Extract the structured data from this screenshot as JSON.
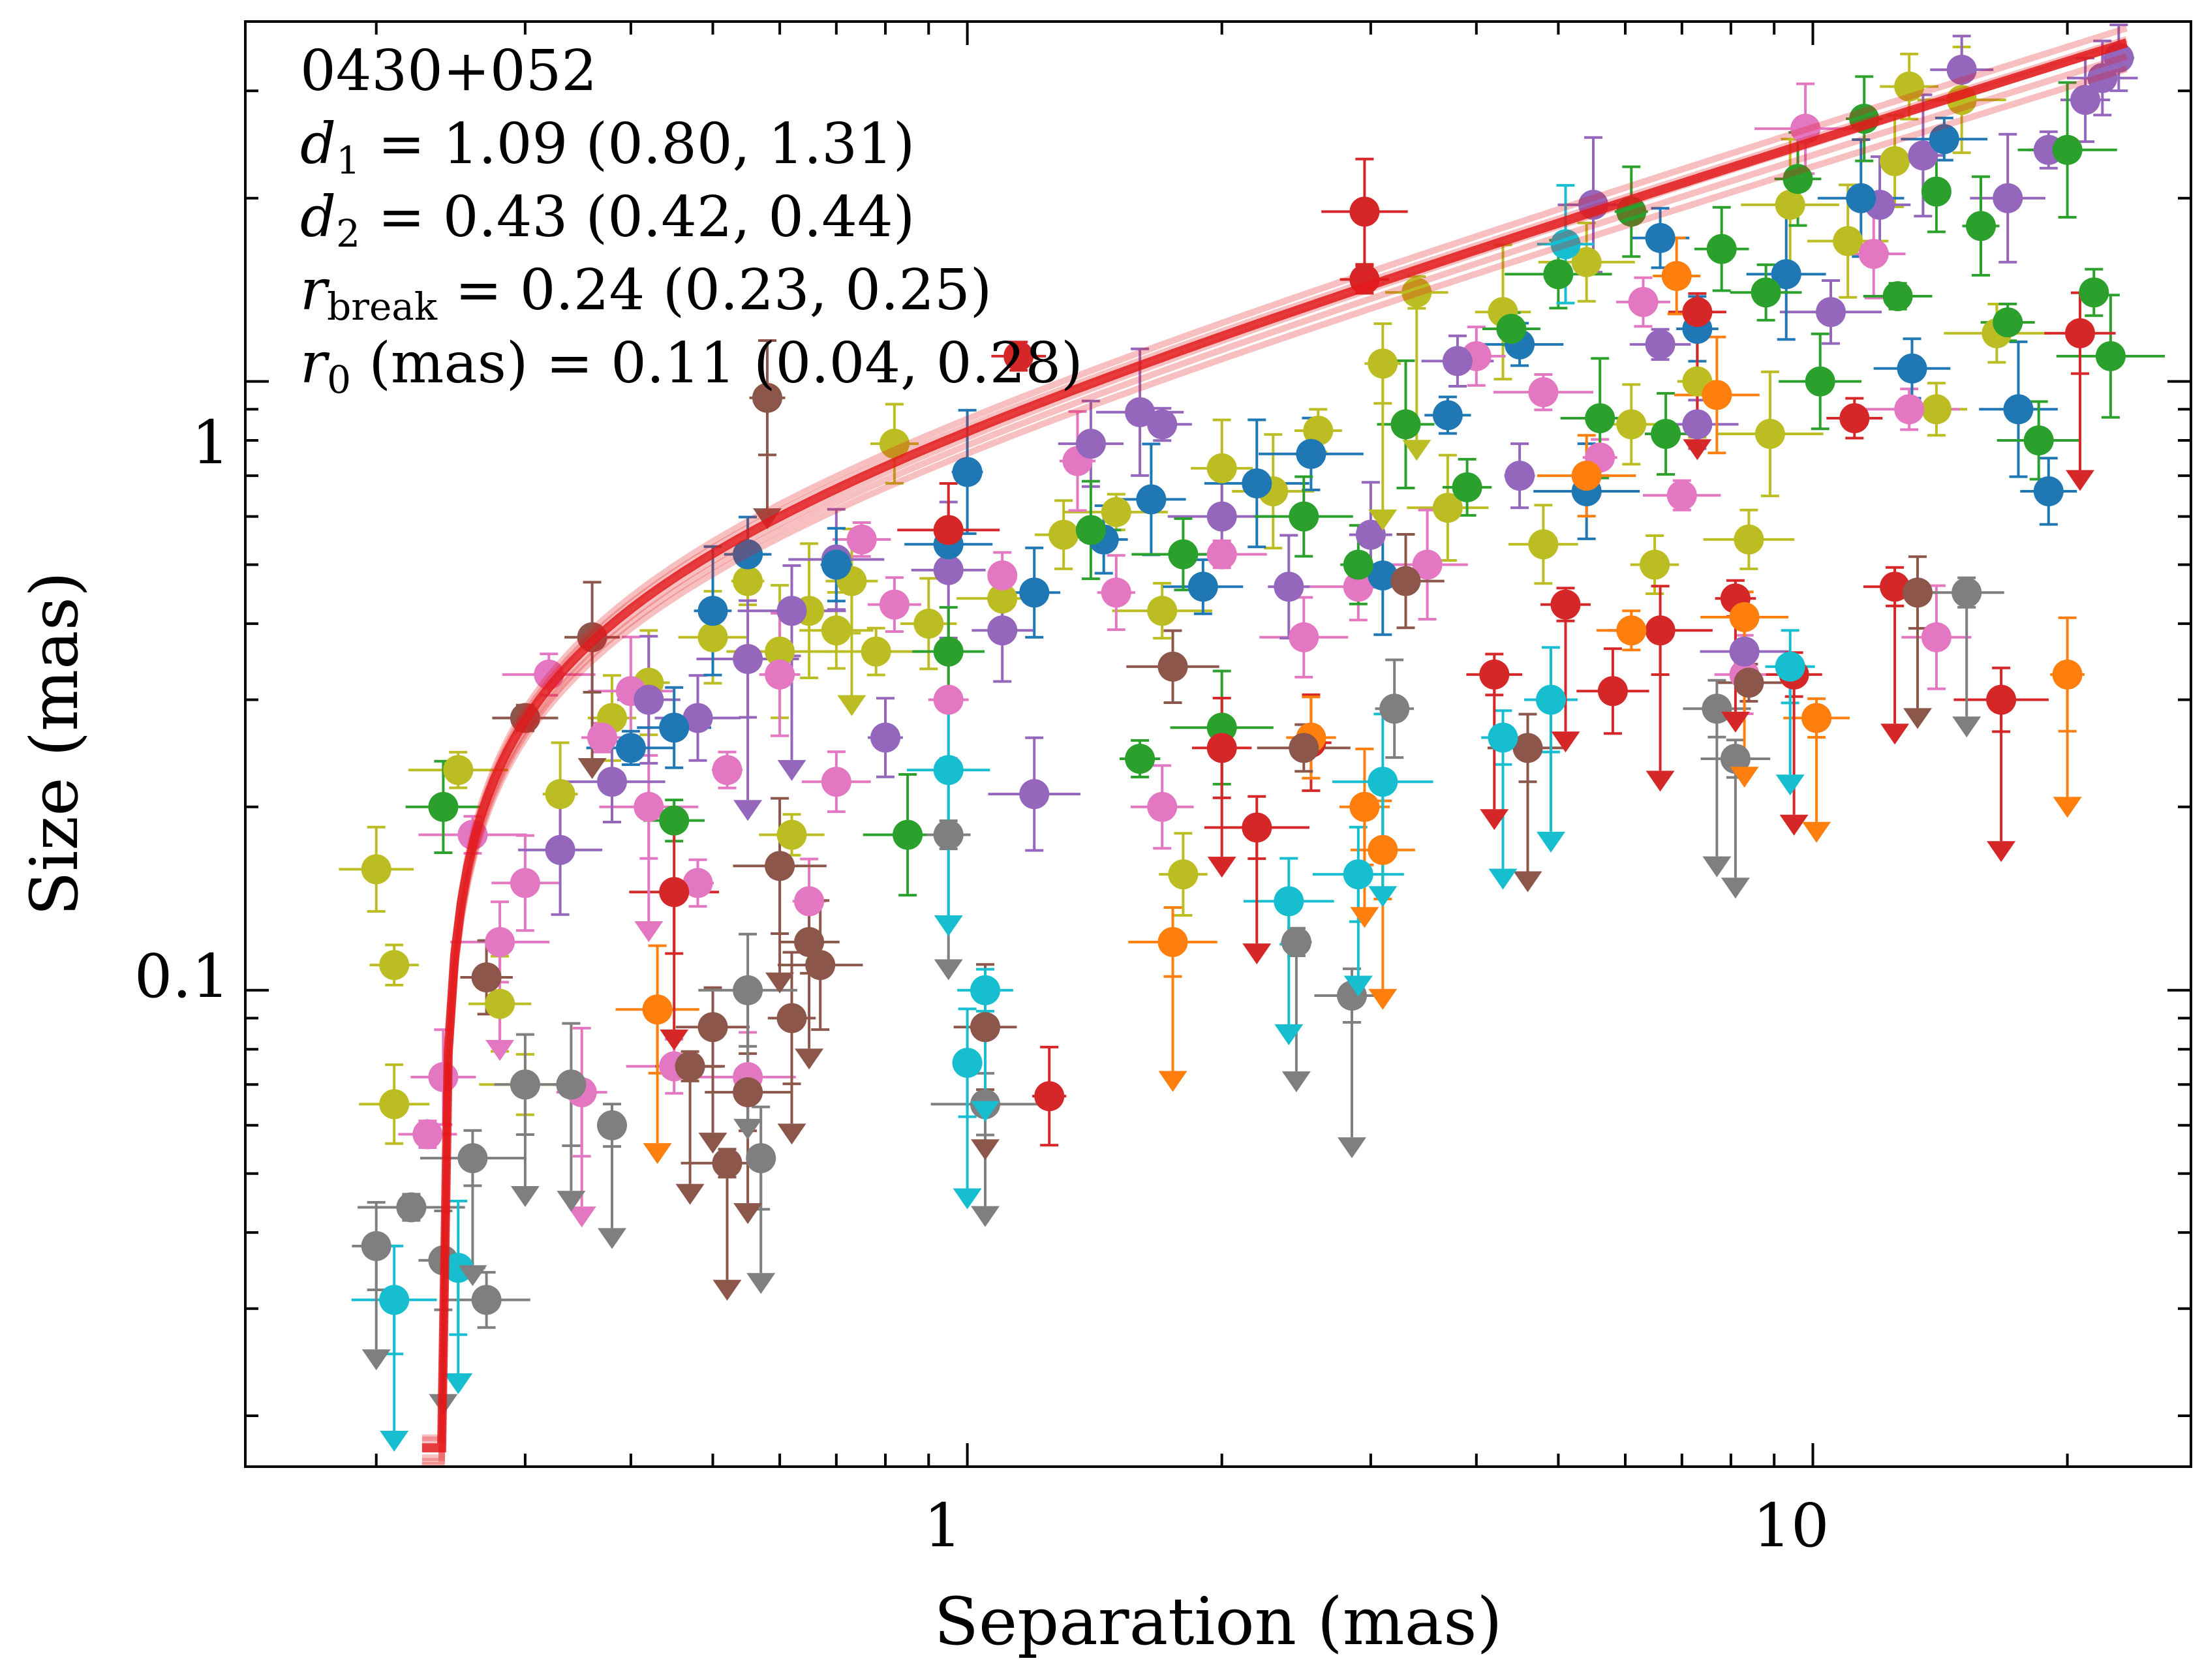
{
  "chart_data": {
    "type": "scatter",
    "title": "",
    "xlabel": "Separation (mas)",
    "ylabel": "Size (mas)",
    "xscale": "log",
    "yscale": "log",
    "xlim": [
      0.14,
      28
    ],
    "ylim": [
      0.0165,
      3.9
    ],
    "x_ticks": [
      1,
      10
    ],
    "x_tick_labels": [
      "1",
      "10"
    ],
    "y_ticks": [
      0.1,
      1
    ],
    "y_tick_labels": [
      "0.1",
      "1"
    ],
    "annotation": {
      "source": "0430+052",
      "d1": {
        "symbol": "d",
        "sub": "1",
        "rest": " = 1.09 (0.80, 1.31)"
      },
      "d2": {
        "symbol": "d",
        "sub": "2",
        "rest": " = 0.43 (0.42, 0.44)"
      },
      "rbreak": {
        "symbol": "r",
        "sub": "break",
        "rest": " = 0.24 (0.23, 0.25)"
      },
      "r0": {
        "symbol": "r",
        "sub": "0",
        "rest": " (mas) = 0.11 (0.04, 0.28)"
      }
    },
    "fit": {
      "name": "broken power-law fit",
      "color": "#e31a1c",
      "d1": 1.09,
      "d2": 0.43,
      "r_break": 0.24,
      "r0": 0.11,
      "x_range": [
        0.226,
        23.5
      ]
    },
    "colors": {
      "blue": "#1f77b4",
      "orange": "#ff7f0e",
      "green": "#2ca02c",
      "red": "#d62728",
      "purple": "#9467bd",
      "brown": "#8c564b",
      "pink": "#e377c2",
      "gray": "#7f7f7f",
      "olive": "#bcbd22",
      "cyan": "#17becf"
    },
    "series": [
      {
        "name": "olive",
        "color": "#bcbd22",
        "points": [
          [
            0.2,
            0.158
          ],
          [
            0.21,
            0.11
          ],
          [
            0.21,
            0.065
          ],
          [
            0.25,
            0.23
          ],
          [
            0.28,
            0.095
          ],
          [
            0.3,
            0.07
          ],
          [
            0.33,
            0.21
          ],
          [
            0.38,
            0.28
          ],
          [
            0.42,
            0.32
          ],
          [
            0.5,
            0.38
          ],
          [
            0.55,
            0.47
          ],
          [
            0.6,
            0.36
          ],
          [
            0.62,
            0.18
          ],
          [
            0.65,
            0.42
          ],
          [
            0.7,
            0.39
          ],
          [
            0.73,
            0.47
          ],
          [
            0.78,
            0.36
          ],
          [
            0.82,
            0.79
          ],
          [
            0.9,
            0.4
          ],
          [
            1.1,
            0.44
          ],
          [
            1.3,
            0.56
          ],
          [
            1.5,
            0.61
          ],
          [
            1.7,
            0.42
          ],
          [
            1.8,
            0.155
          ],
          [
            2.0,
            0.72
          ],
          [
            2.3,
            0.66
          ],
          [
            2.6,
            0.83
          ],
          [
            3.1,
            1.07
          ],
          [
            3.4,
            1.4
          ],
          [
            3.7,
            0.62
          ],
          [
            4.3,
            1.3
          ],
          [
            4.8,
            0.54
          ],
          [
            5.4,
            1.57
          ],
          [
            6.1,
            0.85
          ],
          [
            6.5,
            0.5
          ],
          [
            7.3,
            1.0
          ],
          [
            8.4,
            0.55
          ],
          [
            8.9,
            0.82
          ],
          [
            9.4,
            1.95
          ],
          [
            11.0,
            1.7
          ],
          [
            12.5,
            2.3
          ],
          [
            13.0,
            3.05
          ],
          [
            14.0,
            0.9
          ],
          [
            15.0,
            2.9
          ],
          [
            16.5,
            1.2
          ]
        ]
      },
      {
        "name": "pink",
        "color": "#e377c2",
        "points": [
          [
            0.23,
            0.058
          ],
          [
            0.24,
            0.072
          ],
          [
            0.26,
            0.18
          ],
          [
            0.28,
            0.12
          ],
          [
            0.3,
            0.15
          ],
          [
            0.32,
            0.33
          ],
          [
            0.35,
            0.068
          ],
          [
            0.37,
            0.26
          ],
          [
            0.4,
            0.31
          ],
          [
            0.42,
            0.2
          ],
          [
            0.45,
            0.075
          ],
          [
            0.48,
            0.15
          ],
          [
            0.52,
            0.23
          ],
          [
            0.55,
            0.072
          ],
          [
            0.6,
            0.33
          ],
          [
            0.65,
            0.14
          ],
          [
            0.7,
            0.22
          ],
          [
            0.75,
            0.55
          ],
          [
            0.82,
            0.43
          ],
          [
            0.95,
            0.3
          ],
          [
            1.1,
            0.48
          ],
          [
            1.35,
            0.74
          ],
          [
            1.5,
            0.45
          ],
          [
            1.7,
            0.2
          ],
          [
            2.0,
            0.52
          ],
          [
            2.5,
            0.38
          ],
          [
            2.9,
            0.46
          ],
          [
            3.5,
            0.5
          ],
          [
            4.0,
            1.1
          ],
          [
            4.8,
            0.96
          ],
          [
            5.6,
            0.75
          ],
          [
            6.3,
            1.35
          ],
          [
            7.0,
            0.65
          ],
          [
            8.3,
            0.33
          ],
          [
            9.8,
            2.6
          ],
          [
            11.8,
            1.62
          ],
          [
            13.0,
            0.9
          ],
          [
            14.0,
            0.38
          ]
        ]
      },
      {
        "name": "purple",
        "color": "#9467bd",
        "points": [
          [
            0.33,
            0.17
          ],
          [
            0.38,
            0.22
          ],
          [
            0.42,
            0.3
          ],
          [
            0.48,
            0.28
          ],
          [
            0.55,
            0.35
          ],
          [
            0.62,
            0.42
          ],
          [
            0.7,
            0.51
          ],
          [
            0.8,
            0.26
          ],
          [
            0.95,
            0.49
          ],
          [
            1.1,
            0.39
          ],
          [
            1.2,
            0.21
          ],
          [
            1.4,
            0.79
          ],
          [
            1.6,
            0.89
          ],
          [
            1.7,
            0.85
          ],
          [
            2.0,
            0.6
          ],
          [
            2.4,
            0.46
          ],
          [
            3.0,
            0.56
          ],
          [
            3.8,
            1.08
          ],
          [
            4.5,
            0.7
          ],
          [
            5.5,
            1.95
          ],
          [
            6.6,
            1.15
          ],
          [
            7.3,
            0.85
          ],
          [
            8.3,
            0.36
          ],
          [
            10.5,
            1.3
          ],
          [
            12.0,
            1.95
          ],
          [
            13.5,
            2.35
          ],
          [
            15.0,
            3.25
          ],
          [
            17.0,
            2.0
          ],
          [
            19.0,
            2.4
          ],
          [
            21.0,
            2.9
          ],
          [
            22.0,
            3.15
          ],
          [
            23.0,
            3.4
          ]
        ]
      },
      {
        "name": "blue",
        "color": "#1f77b4",
        "points": [
          [
            0.4,
            0.25
          ],
          [
            0.45,
            0.27
          ],
          [
            0.5,
            0.42
          ],
          [
            0.55,
            0.52
          ],
          [
            0.7,
            0.5
          ],
          [
            0.95,
            0.54
          ],
          [
            1.0,
            0.71
          ],
          [
            1.2,
            0.45
          ],
          [
            1.45,
            0.55
          ],
          [
            1.65,
            0.64
          ],
          [
            1.9,
            0.46
          ],
          [
            2.2,
            0.68
          ],
          [
            2.55,
            0.76
          ],
          [
            3.1,
            0.48
          ],
          [
            3.7,
            0.88
          ],
          [
            4.5,
            1.15
          ],
          [
            5.4,
            0.66
          ],
          [
            6.6,
            1.72
          ],
          [
            7.3,
            1.22
          ],
          [
            9.3,
            1.5
          ],
          [
            11.4,
            2.0
          ],
          [
            13.1,
            1.05
          ],
          [
            14.3,
            2.5
          ],
          [
            17.5,
            0.9
          ],
          [
            19.0,
            0.66
          ]
        ]
      },
      {
        "name": "green",
        "color": "#2ca02c",
        "points": [
          [
            0.24,
            0.2
          ],
          [
            0.45,
            0.19
          ],
          [
            0.85,
            0.18
          ],
          [
            0.95,
            0.36
          ],
          [
            1.4,
            0.57
          ],
          [
            1.6,
            0.24
          ],
          [
            1.8,
            0.52
          ],
          [
            2.0,
            0.27
          ],
          [
            2.5,
            0.6
          ],
          [
            2.9,
            0.5
          ],
          [
            3.3,
            0.85
          ],
          [
            3.9,
            0.67
          ],
          [
            4.4,
            1.22
          ],
          [
            5.0,
            1.5
          ],
          [
            5.6,
            0.87
          ],
          [
            6.1,
            1.9
          ],
          [
            6.7,
            0.82
          ],
          [
            7.8,
            1.65
          ],
          [
            8.8,
            1.4
          ],
          [
            9.6,
            2.15
          ],
          [
            10.2,
            1.0
          ],
          [
            11.5,
            2.7
          ],
          [
            12.6,
            1.38
          ],
          [
            14.0,
            2.05
          ],
          [
            15.8,
            1.8
          ],
          [
            17.0,
            1.25
          ],
          [
            18.5,
            0.8
          ],
          [
            20.0,
            2.4
          ],
          [
            21.5,
            1.4
          ],
          [
            22.5,
            1.1
          ]
        ]
      },
      {
        "name": "red",
        "color": "#d62728",
        "points": [
          [
            0.45,
            0.145
          ],
          [
            0.95,
            0.57
          ],
          [
            1.15,
            1.1
          ],
          [
            1.25,
            0.067
          ],
          [
            2.0,
            0.25
          ],
          [
            2.2,
            0.185
          ],
          [
            2.55,
            0.255
          ],
          [
            2.95,
            1.9
          ],
          [
            2.95,
            1.47
          ],
          [
            4.2,
            0.33
          ],
          [
            5.1,
            0.43
          ],
          [
            5.8,
            0.31
          ],
          [
            6.6,
            0.39
          ],
          [
            7.3,
            1.3
          ],
          [
            8.1,
            0.44
          ],
          [
            9.5,
            0.33
          ],
          [
            11.2,
            0.87
          ],
          [
            12.5,
            0.46
          ],
          [
            16.7,
            0.3
          ],
          [
            20.7,
            1.2
          ]
        ]
      },
      {
        "name": "orange",
        "color": "#ff7f0e",
        "points": [
          [
            0.43,
            0.093
          ],
          [
            1.75,
            0.12
          ],
          [
            2.55,
            0.26
          ],
          [
            2.95,
            0.2
          ],
          [
            3.1,
            0.17
          ],
          [
            5.4,
            0.7
          ],
          [
            6.1,
            0.39
          ],
          [
            6.9,
            1.49
          ],
          [
            7.7,
            0.95
          ],
          [
            8.3,
            0.41
          ],
          [
            10.1,
            0.28
          ],
          [
            20.0,
            0.33
          ]
        ]
      },
      {
        "name": "brown",
        "color": "#8c564b",
        "points": [
          [
            0.27,
            0.105
          ],
          [
            0.3,
            0.28
          ],
          [
            0.36,
            0.38
          ],
          [
            0.47,
            0.075
          ],
          [
            0.5,
            0.087
          ],
          [
            0.52,
            0.052
          ],
          [
            0.55,
            0.068
          ],
          [
            0.58,
            0.94
          ],
          [
            0.6,
            0.16
          ],
          [
            0.62,
            0.09
          ],
          [
            0.65,
            0.12
          ],
          [
            0.67,
            0.11
          ],
          [
            1.05,
            0.087
          ],
          [
            1.75,
            0.34
          ],
          [
            2.5,
            0.25
          ],
          [
            3.3,
            0.47
          ],
          [
            4.6,
            0.25
          ],
          [
            8.4,
            0.32
          ],
          [
            13.3,
            0.45
          ]
        ]
      },
      {
        "name": "gray",
        "color": "#7f7f7f",
        "points": [
          [
            0.2,
            0.038
          ],
          [
            0.22,
            0.044
          ],
          [
            0.24,
            0.036
          ],
          [
            0.26,
            0.053
          ],
          [
            0.27,
            0.031
          ],
          [
            0.3,
            0.07
          ],
          [
            0.34,
            0.07
          ],
          [
            0.38,
            0.06
          ],
          [
            0.55,
            0.1
          ],
          [
            0.57,
            0.053
          ],
          [
            0.95,
            0.18
          ],
          [
            1.05,
            0.065
          ],
          [
            2.45,
            0.12
          ],
          [
            2.85,
            0.098
          ],
          [
            3.2,
            0.29
          ],
          [
            7.7,
            0.29
          ],
          [
            8.1,
            0.24
          ],
          [
            15.2,
            0.45
          ]
        ]
      },
      {
        "name": "cyan",
        "color": "#17becf",
        "points": [
          [
            0.21,
            0.031
          ],
          [
            0.25,
            0.035
          ],
          [
            0.95,
            0.23
          ],
          [
            1.0,
            0.076
          ],
          [
            1.05,
            0.1
          ],
          [
            2.4,
            0.14
          ],
          [
            2.9,
            0.155
          ],
          [
            3.1,
            0.22
          ],
          [
            4.3,
            0.26
          ],
          [
            4.9,
            0.3
          ],
          [
            5.1,
            1.68
          ],
          [
            9.4,
            0.34
          ]
        ]
      }
    ],
    "upper_limits": [
      {
        "color": "#bcbd22",
        "x": [
          0.75,
          3.2,
          3.4
        ]
      },
      {
        "color": "#e377c2",
        "x": [
          0.28,
          0.35,
          0.42
        ]
      },
      {
        "color": "#9467bd",
        "x": [
          0.55,
          0.65
        ]
      },
      {
        "color": "#d62728",
        "x": [
          0.6,
          2.0,
          2.2,
          4.2,
          5.1,
          6.6,
          7.3,
          8.1,
          10.1,
          12.6,
          16.7,
          20.7
        ]
      },
      {
        "color": "#ff7f0e",
        "x": [
          0.43,
          1.75,
          2.95,
          3.1,
          8.3,
          10.1,
          20.0
        ]
      },
      {
        "color": "#8c564b",
        "x": [
          0.36,
          0.47,
          0.5,
          0.52,
          0.55,
          0.58,
          0.6,
          0.62,
          0.65,
          1.05,
          4.6,
          13.3
        ]
      },
      {
        "color": "#7f7f7f",
        "x": [
          0.2,
          0.24,
          0.26,
          0.3,
          0.34,
          0.38,
          0.55,
          0.57,
          0.95,
          1.05,
          2.45,
          2.85,
          7.7,
          8.1,
          15.2
        ]
      },
      {
        "color": "#17becf",
        "x": [
          0.21,
          0.25,
          0.95,
          1.0,
          1.05,
          2.4,
          2.9,
          3.1,
          4.3,
          4.9,
          9.4
        ]
      }
    ]
  }
}
